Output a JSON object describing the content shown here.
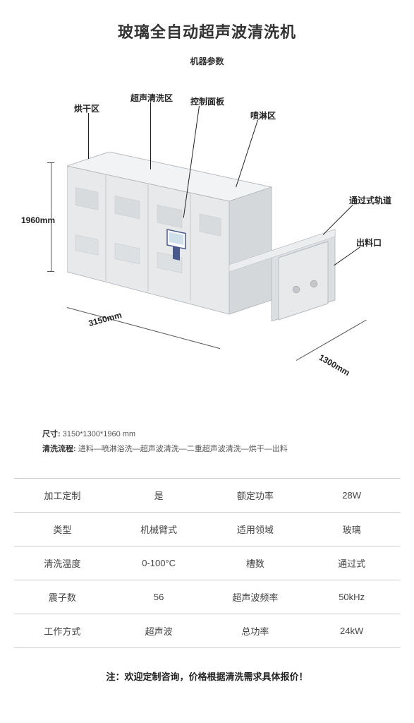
{
  "title": "玻璃全自动超声波清洗机",
  "subtitle": "机器参数",
  "diagram": {
    "labels": {
      "drying": "烘干区",
      "ultrasonic": "超声清洗区",
      "control": "控制面板",
      "spray": "喷淋区",
      "track": "通过式轨道",
      "outlet": "出料口"
    },
    "dimensions": {
      "height": "1960mm",
      "width": "3150mm",
      "depth": "1300mm"
    }
  },
  "info": {
    "size_label": "尺寸:",
    "size_value": "3150*1300*1960 mm",
    "process_label": "清洗流程:",
    "process_value": "进料—喷淋浴洗—超声波清洗—二重超声波清洗—烘干—出料"
  },
  "specs": {
    "rows": [
      {
        "k1": "加工定制",
        "v1": "是",
        "k2": "额定功率",
        "v2": "28W"
      },
      {
        "k1": "类型",
        "v1": "机械臂式",
        "k2": "适用领域",
        "v2": "玻璃"
      },
      {
        "k1": "清洗温度",
        "v1": "0-100°C",
        "k2": "槽数",
        "v2": "通过式"
      },
      {
        "k1": "震子数",
        "v1": "56",
        "k2": "超声波频率",
        "v2": "50kHz"
      },
      {
        "k1": "工作方式",
        "v1": "超声波",
        "k2": "总功率",
        "v2": "24kW"
      }
    ]
  },
  "note": "注：欢迎定制咨询，价格根据清洗需求具体报价！",
  "colors": {
    "machine_body": "#e8e9ea",
    "machine_edge": "#b8bcc0",
    "machine_shadow": "#c5c8cb",
    "panel_screen": "#d0e0ea",
    "panel_frame": "#4a5a8a"
  }
}
